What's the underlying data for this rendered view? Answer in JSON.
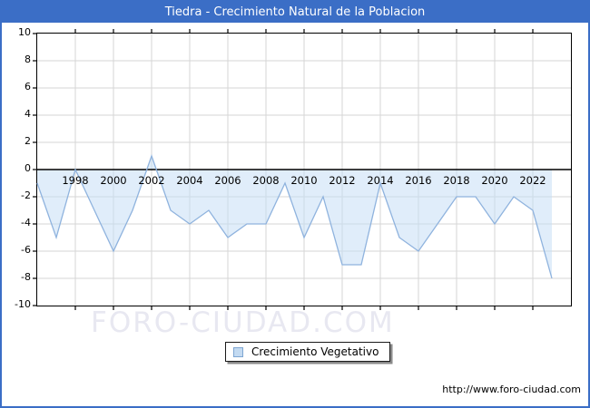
{
  "title": "Tiedra - Crecimiento Natural de la Poblacion",
  "watermark": "FORO-CIUDAD.COM",
  "legend": {
    "label": "Crecimiento Vegetativo"
  },
  "footer_url": "http://www.foro-ciudad.com",
  "colors": {
    "title_bar": "#3b6ec6",
    "frame_border": "#3b6ec6",
    "plot_border": "#000000",
    "gridline": "#d6d6d6",
    "zero_line": "#000000",
    "area_fill": "#c7dff5",
    "series_line": "#8fb3de",
    "legend_swatch_fill": "#c3daf1",
    "legend_swatch_border": "#7ea6d2",
    "watermark_color": "#e8e8f1"
  },
  "chart_data": {
    "type": "area",
    "title": "Tiedra - Crecimiento Natural de la Poblacion",
    "x": [
      1996,
      1997,
      1998,
      1999,
      2000,
      2001,
      2002,
      2003,
      2004,
      2005,
      2006,
      2007,
      2008,
      2009,
      2010,
      2011,
      2012,
      2013,
      2014,
      2015,
      2016,
      2017,
      2018,
      2019,
      2020,
      2021,
      2022,
      2023
    ],
    "series": [
      {
        "name": "Crecimiento Vegetativo",
        "values": [
          -1,
          -5,
          0,
          -3,
          -6,
          -3,
          1,
          -3,
          -4,
          -3,
          -5,
          -4,
          -4,
          -1,
          -5,
          -2,
          -7,
          -7,
          -1,
          -5,
          -6,
          -4,
          -2,
          -2,
          -4,
          -2,
          -3,
          -8
        ]
      }
    ],
    "baseline": 0,
    "xlim": [
      1996,
      2024
    ],
    "ylim": [
      -10,
      10
    ],
    "y_ticks": [
      10,
      8,
      6,
      4,
      2,
      0,
      -2,
      -4,
      -6,
      -8,
      -10
    ],
    "x_tick_labels": [
      1998,
      2000,
      2002,
      2004,
      2006,
      2008,
      2010,
      2012,
      2014,
      2016,
      2018,
      2020,
      2022
    ],
    "grid": true,
    "legend_position": "bottom-center"
  }
}
